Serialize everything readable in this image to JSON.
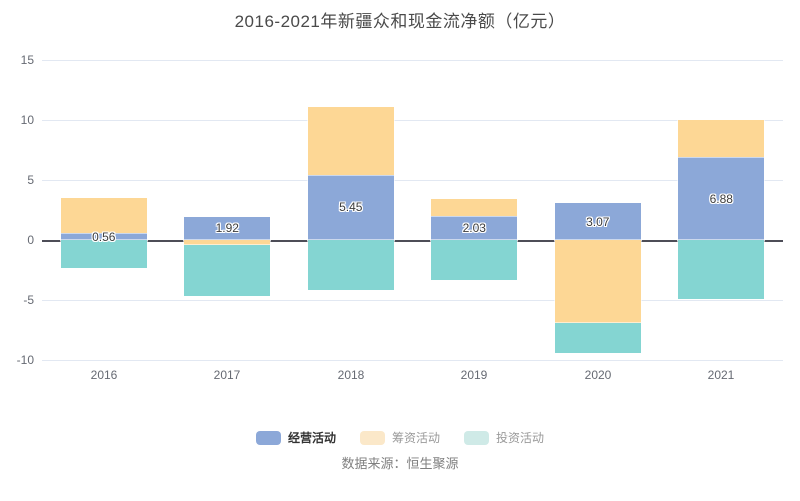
{
  "title": "2016-2021年新疆众和现金流净额（亿元）",
  "source": "数据来源：恒生聚源",
  "axis": {
    "y_ticks": [
      "15",
      "10",
      "5",
      "0",
      "-5",
      "-10"
    ],
    "x_ticks": [
      "2016",
      "2017",
      "2018",
      "2019",
      "2020",
      "2021"
    ]
  },
  "legend": {
    "items": [
      {
        "label": "经营活动",
        "swatch": "#8CA8D8",
        "muted": false
      },
      {
        "label": "筹资活动",
        "swatch": "#FBE8C9",
        "muted": true
      },
      {
        "label": "投资活动",
        "swatch": "#CFEAE7",
        "muted": true
      }
    ]
  },
  "colors": {
    "operating": "#8CA8D8",
    "financing": "#FDD795",
    "investing": "#84D5D2",
    "zero_line": "#4D4D57",
    "gridline": "#E2E8F2"
  },
  "chart_data": {
    "type": "bar",
    "stacked": true,
    "title": "2016-2021年新疆众和现金流净额（亿元）",
    "categories": [
      "2016",
      "2017",
      "2018",
      "2019",
      "2020",
      "2021"
    ],
    "series": [
      {
        "name": "经营活动",
        "key": "operating",
        "color": "#8CA8D8",
        "values": [
          0.56,
          1.92,
          5.45,
          2.03,
          3.07,
          6.88
        ],
        "data_labels": [
          "0.56",
          "1.92",
          "5.45",
          "2.03",
          "3.07",
          "6.88"
        ]
      },
      {
        "name": "筹资活动",
        "key": "financing",
        "color": "#FDD795",
        "values": [
          2.91,
          -0.4,
          5.6,
          1.42,
          -6.9,
          3.15
        ]
      },
      {
        "name": "投资活动",
        "key": "investing",
        "color": "#84D5D2",
        "values": [
          -2.36,
          -4.25,
          -4.15,
          -3.3,
          -2.5,
          -4.95
        ]
      }
    ],
    "ylim": [
      -10,
      15
    ],
    "yticks": [
      15,
      10,
      5,
      0,
      -5,
      -10
    ],
    "grid": true,
    "legend_position": "bottom",
    "xlabel": "",
    "ylabel": ""
  }
}
